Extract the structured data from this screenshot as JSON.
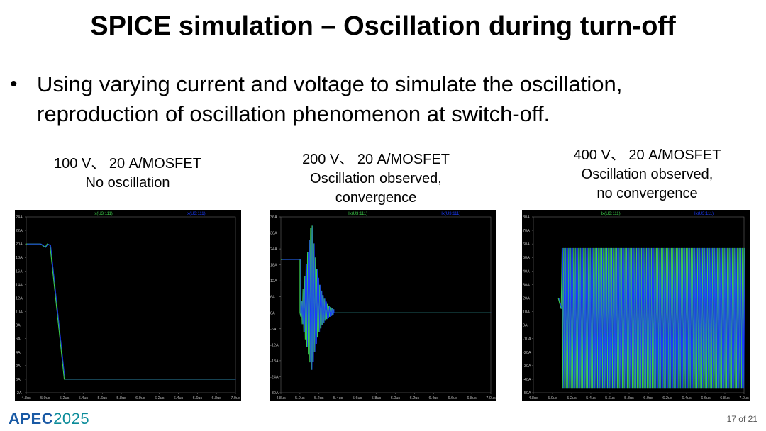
{
  "slide": {
    "title": "SPICE simulation – Oscillation during turn-off",
    "bullet": "Using varying current and voltage to simulate the oscillation, reproduction of oscillation phenomenon at switch-off.",
    "bullet_symbol": "•",
    "footer": {
      "logo_a": "APEC",
      "logo_year": "2025",
      "page": "17 of 21"
    }
  },
  "captions": [
    [
      "100 V、 20 A/MOSFET",
      "No oscillation"
    ],
    [
      "200 V、 20 A/MOSFET",
      "Oscillation observed,",
      "convergence"
    ],
    [
      "400 V、 20 A/MOSFET",
      "Oscillation observed,",
      "no convergence"
    ]
  ],
  "colors": {
    "trace_green": "#3ccf4a",
    "trace_blue": "#1a3cff",
    "plot_bg": "#000000",
    "axis_text": "#bbbbbb"
  },
  "chart_data": [
    {
      "type": "line",
      "legend": [
        "Ix(U3:111)",
        "Ix(U3:111)"
      ],
      "x_ticks": [
        "4.8us",
        "5.0us",
        "5.2us",
        "5.4us",
        "5.6us",
        "5.8us",
        "6.0us",
        "6.2us",
        "6.4us",
        "6.6us",
        "6.8us",
        "7.0us"
      ],
      "y_ticks": [
        "24A",
        "22A",
        "20A",
        "18A",
        "16A",
        "14A",
        "12A",
        "10A",
        "8A",
        "6A",
        "4A",
        "2A",
        "0A",
        "-2A"
      ],
      "xlim": [
        4.8,
        7.0
      ],
      "ylim": [
        -2,
        24
      ],
      "behavior": "no oscillation",
      "series": [
        {
          "name": "Ix(U3:111)",
          "x": [
            4.8,
            4.95,
            5.0,
            5.02,
            5.05,
            5.2,
            7.0
          ],
          "y": [
            20,
            20,
            19.5,
            20,
            19.8,
            0,
            0
          ]
        }
      ]
    },
    {
      "type": "line",
      "legend": [
        "Ix(U3:111)",
        "Ix(U3:111)"
      ],
      "x_ticks": [
        "4.8us",
        "5.0us",
        "5.2us",
        "5.4us",
        "5.6us",
        "5.8us",
        "6.0us",
        "6.2us",
        "6.4us",
        "6.6us",
        "6.8us",
        "7.0us"
      ],
      "y_ticks": [
        "36A",
        "30A",
        "24A",
        "18A",
        "12A",
        "6A",
        "0A",
        "-6A",
        "-12A",
        "-18A",
        "-24A",
        "-30A"
      ],
      "xlim": [
        4.8,
        7.0
      ],
      "ylim": [
        -30,
        36
      ],
      "behavior": "damped oscillation, converges to 0A near 5.3us",
      "oscillation": {
        "start_x": 5.0,
        "peak_max": 35,
        "peak_min": -22,
        "settle_x": 5.35,
        "initial": 20
      }
    },
    {
      "type": "line",
      "legend": [
        "Ix(U3:111)",
        "Ix(U3:111)"
      ],
      "x_ticks": [
        "4.8us",
        "5.0us",
        "5.2us",
        "5.4us",
        "5.6us",
        "5.8us",
        "6.0us",
        "6.2us",
        "6.4us",
        "6.6us",
        "6.8us",
        "7.0us"
      ],
      "y_ticks": [
        "80A",
        "70A",
        "60A",
        "50A",
        "40A",
        "30A",
        "20A",
        "10A",
        "0A",
        "-10A",
        "-20A",
        "-30A",
        "-40A",
        "-50A"
      ],
      "xlim": [
        4.8,
        7.0
      ],
      "ylim": [
        -50,
        80
      ],
      "behavior": "sustained oscillation, no convergence",
      "oscillation": {
        "start_x": 5.1,
        "upper": 57,
        "lower": -47,
        "initial": 20
      }
    }
  ]
}
